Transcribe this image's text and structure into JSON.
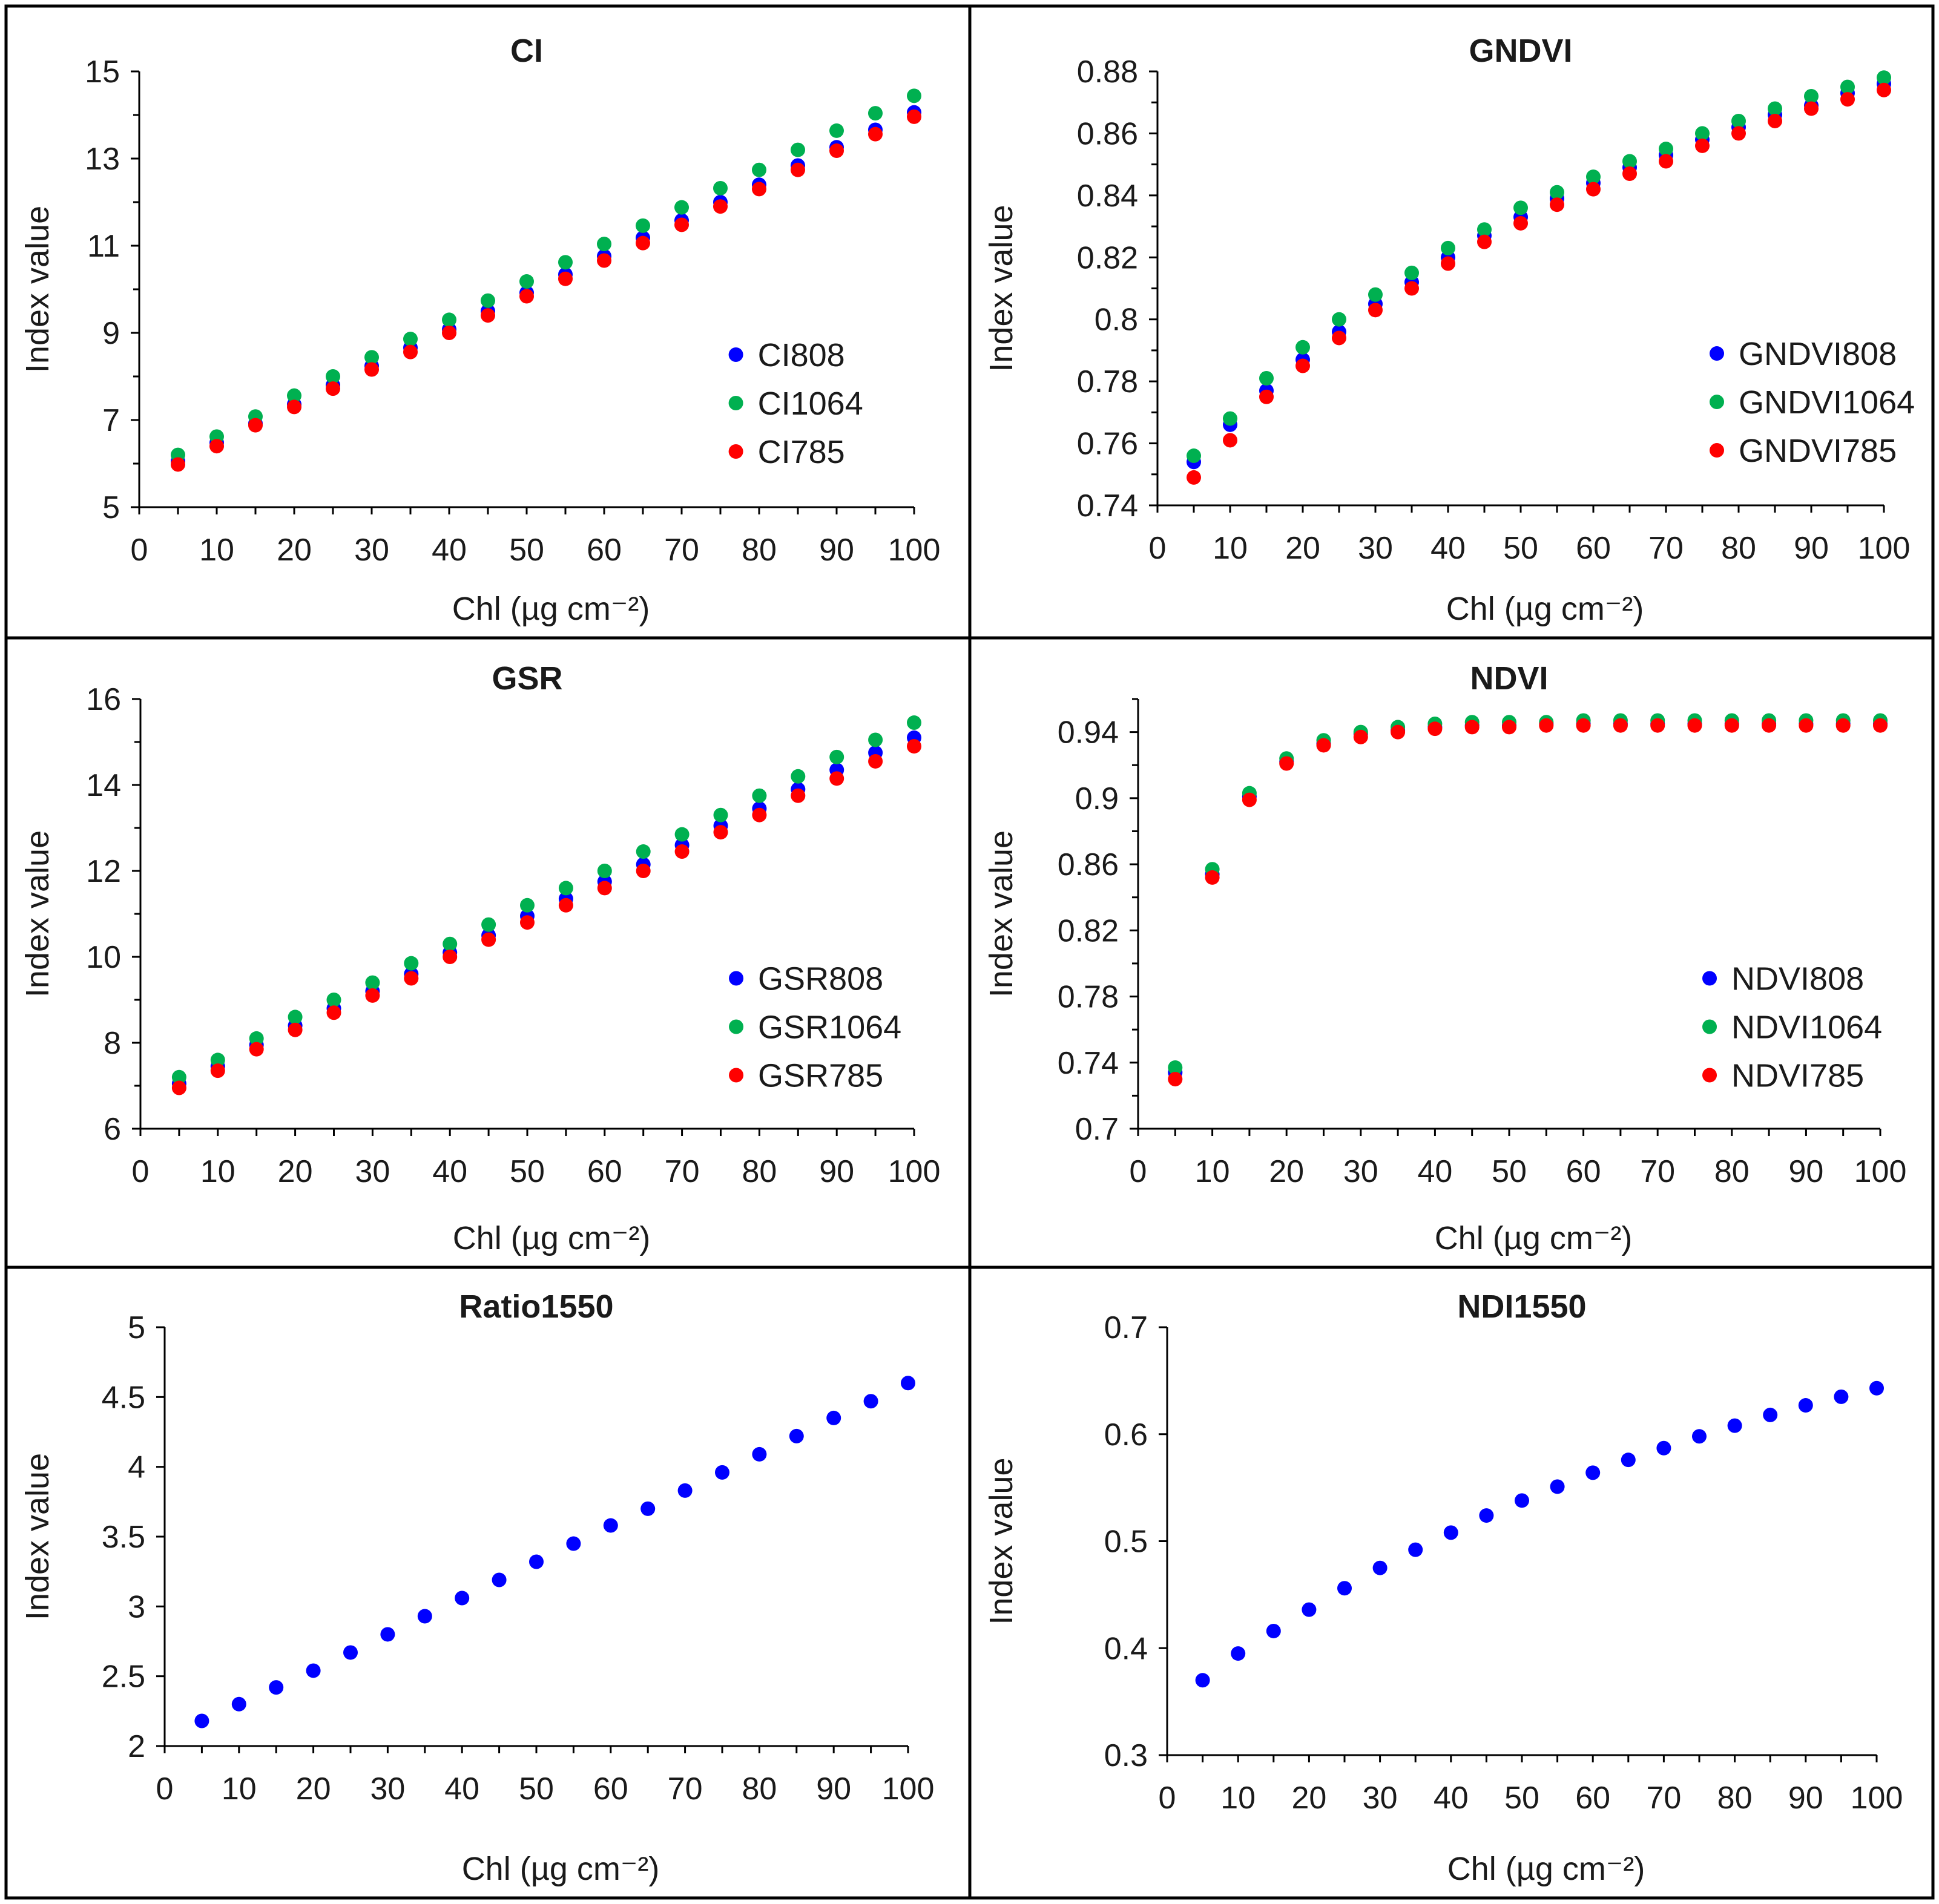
{
  "chart_data": [
    {
      "type": "scatter",
      "title": "CI",
      "xlabel": "Chl (µg cm⁻²)",
      "ylabel": "Index value",
      "xlim": [
        0,
        100
      ],
      "ylim": [
        5,
        15
      ],
      "x_ticks": [
        0,
        10,
        20,
        30,
        40,
        50,
        60,
        70,
        80,
        90,
        100
      ],
      "y_ticks": [
        5,
        7,
        9,
        11,
        13,
        15
      ],
      "y_minor": 1,
      "x": [
        5,
        10,
        15,
        20,
        25,
        30,
        35,
        40,
        45,
        50,
        55,
        60,
        65,
        70,
        75,
        80,
        85,
        90,
        95,
        100
      ],
      "legend_position": "bottom-right",
      "series": [
        {
          "name": "CI808",
          "color": "#0000ff",
          "values": [
            6.05,
            6.48,
            6.92,
            7.36,
            7.8,
            8.24,
            8.66,
            9.08,
            9.5,
            9.92,
            10.34,
            10.76,
            11.18,
            11.58,
            12.0,
            12.4,
            12.84,
            13.26,
            13.66,
            14.06
          ]
        },
        {
          "name": "CI1064",
          "color": "#00b050",
          "values": [
            6.2,
            6.62,
            7.08,
            7.56,
            8.0,
            8.44,
            8.86,
            9.3,
            9.74,
            10.18,
            10.62,
            11.04,
            11.46,
            11.88,
            12.32,
            12.74,
            13.2,
            13.64,
            14.04,
            14.44
          ]
        },
        {
          "name": "CI785",
          "color": "#ff0000",
          "values": [
            5.98,
            6.4,
            6.88,
            7.3,
            7.72,
            8.16,
            8.56,
            9.0,
            9.4,
            9.84,
            10.24,
            10.66,
            11.06,
            11.48,
            11.9,
            12.3,
            12.74,
            13.18,
            13.56,
            13.96
          ]
        }
      ]
    },
    {
      "type": "scatter",
      "title": "GNDVI",
      "xlabel": "Chl (µg cm⁻²)",
      "ylabel": "Index value",
      "xlim": [
        0,
        100
      ],
      "ylim": [
        0.74,
        0.88
      ],
      "x_ticks": [
        0,
        10,
        20,
        30,
        40,
        50,
        60,
        70,
        80,
        90,
        100
      ],
      "y_ticks": [
        0.74,
        0.76,
        0.78,
        0.8,
        0.82,
        0.84,
        0.86,
        0.88
      ],
      "y_tick_labels": [
        "0.74",
        "0.76",
        "0.78",
        "0.8",
        "0.82",
        "0.84",
        "0.86",
        "0.88"
      ],
      "y_minor": 0.01,
      "x": [
        5,
        10,
        15,
        20,
        25,
        30,
        35,
        40,
        45,
        50,
        55,
        60,
        65,
        70,
        75,
        80,
        85,
        90,
        95,
        100
      ],
      "legend_position": "bottom-right",
      "series": [
        {
          "name": "GNDVI808",
          "color": "#0000ff",
          "values": [
            0.754,
            0.766,
            0.777,
            0.787,
            0.796,
            0.805,
            0.812,
            0.82,
            0.827,
            0.833,
            0.839,
            0.844,
            0.849,
            0.853,
            0.858,
            0.862,
            0.866,
            0.869,
            0.873,
            0.876
          ]
        },
        {
          "name": "GNDVI1064",
          "color": "#00b050",
          "values": [
            0.756,
            0.768,
            0.781,
            0.791,
            0.8,
            0.808,
            0.815,
            0.823,
            0.829,
            0.836,
            0.841,
            0.846,
            0.851,
            0.855,
            0.86,
            0.864,
            0.868,
            0.872,
            0.875,
            0.878
          ]
        },
        {
          "name": "GNDVI785",
          "color": "#ff0000",
          "values": [
            0.749,
            0.761,
            0.775,
            0.785,
            0.794,
            0.803,
            0.81,
            0.818,
            0.825,
            0.831,
            0.837,
            0.842,
            0.847,
            0.851,
            0.856,
            0.86,
            0.864,
            0.868,
            0.871,
            0.874
          ]
        }
      ]
    },
    {
      "type": "scatter",
      "title": "GSR",
      "xlabel": "Chl (µg cm⁻²)",
      "ylabel": "Index value",
      "xlim": [
        0,
        100
      ],
      "ylim": [
        6,
        16
      ],
      "x_ticks": [
        0,
        10,
        20,
        30,
        40,
        50,
        60,
        70,
        80,
        90,
        100
      ],
      "y_ticks": [
        6,
        8,
        10,
        12,
        14,
        16
      ],
      "y_minor": 1,
      "x": [
        5,
        10,
        15,
        20,
        25,
        30,
        35,
        40,
        45,
        50,
        55,
        60,
        65,
        70,
        75,
        80,
        85,
        90,
        95,
        100
      ],
      "legend_position": "bottom-right",
      "series": [
        {
          "name": "GSR808",
          "color": "#0000ff",
          "values": [
            7.05,
            7.45,
            7.95,
            8.4,
            8.8,
            9.2,
            9.6,
            10.1,
            10.5,
            10.95,
            11.35,
            11.75,
            12.15,
            12.6,
            13.05,
            13.45,
            13.9,
            14.35,
            14.75,
            15.1
          ]
        },
        {
          "name": "GSR1064",
          "color": "#00b050",
          "values": [
            7.2,
            7.6,
            8.1,
            8.6,
            9.0,
            9.4,
            9.85,
            10.3,
            10.75,
            11.2,
            11.6,
            12.0,
            12.45,
            12.85,
            13.3,
            13.75,
            14.2,
            14.65,
            15.05,
            15.45
          ]
        },
        {
          "name": "GSR785",
          "color": "#ff0000",
          "values": [
            6.95,
            7.35,
            7.85,
            8.3,
            8.7,
            9.1,
            9.5,
            10.0,
            10.4,
            10.8,
            11.2,
            11.6,
            12.0,
            12.45,
            12.9,
            13.3,
            13.75,
            14.15,
            14.55,
            14.9
          ]
        }
      ]
    },
    {
      "type": "scatter",
      "title": "NDVI",
      "xlabel": "Chl (µg cm⁻²)",
      "ylabel": "Index value",
      "xlim": [
        0,
        100
      ],
      "ylim": [
        0.7,
        0.96
      ],
      "x_ticks": [
        0,
        10,
        20,
        30,
        40,
        50,
        60,
        70,
        80,
        90,
        100
      ],
      "y_ticks": [
        0.7,
        0.74,
        0.78,
        0.82,
        0.86,
        0.9,
        0.94
      ],
      "y_tick_labels": [
        "0.7",
        "0.74",
        "0.78",
        "0.82",
        "0.86",
        "0.9",
        "0.94"
      ],
      "y_minor": 0.02,
      "x": [
        5,
        10,
        15,
        20,
        25,
        30,
        35,
        40,
        45,
        50,
        55,
        60,
        65,
        70,
        75,
        80,
        85,
        90,
        95,
        100
      ],
      "legend_position": "bottom-right",
      "series": [
        {
          "name": "NDVI808",
          "color": "#0000ff",
          "values": [
            0.734,
            0.854,
            0.901,
            0.922,
            0.933,
            0.939,
            0.941,
            0.943,
            0.944,
            0.944,
            0.945,
            0.945,
            0.945,
            0.945,
            0.945,
            0.945,
            0.945,
            0.945,
            0.945,
            0.945
          ]
        },
        {
          "name": "NDVI1064",
          "color": "#00b050",
          "values": [
            0.737,
            0.857,
            0.903,
            0.924,
            0.935,
            0.94,
            0.943,
            0.945,
            0.946,
            0.946,
            0.946,
            0.947,
            0.947,
            0.947,
            0.947,
            0.947,
            0.947,
            0.947,
            0.947,
            0.947
          ]
        },
        {
          "name": "NDVI785",
          "color": "#ff0000",
          "values": [
            0.73,
            0.852,
            0.899,
            0.921,
            0.932,
            0.937,
            0.94,
            0.942,
            0.943,
            0.943,
            0.944,
            0.944,
            0.944,
            0.944,
            0.944,
            0.944,
            0.944,
            0.944,
            0.944,
            0.944
          ]
        }
      ]
    },
    {
      "type": "scatter",
      "title": "Ratio1550",
      "xlabel": "Chl (µg cm⁻²)",
      "ylabel": "Index value",
      "xlim": [
        0,
        100
      ],
      "ylim": [
        2,
        5
      ],
      "x_ticks": [
        0,
        10,
        20,
        30,
        40,
        50,
        60,
        70,
        80,
        90,
        100
      ],
      "y_ticks": [
        2,
        2.5,
        3,
        3.5,
        4,
        4.5,
        5
      ],
      "y_tick_labels": [
        "2",
        "2.5",
        "3",
        "3.5",
        "4",
        "4.5",
        "5"
      ],
      "y_minor": null,
      "x": [
        5,
        10,
        15,
        20,
        25,
        30,
        35,
        40,
        45,
        50,
        55,
        60,
        65,
        70,
        75,
        80,
        85,
        90,
        95,
        100
      ],
      "legend_position": "none",
      "series": [
        {
          "name": "Ratio1550",
          "color": "#0000ff",
          "values": [
            2.18,
            2.3,
            2.42,
            2.54,
            2.67,
            2.8,
            2.93,
            3.06,
            3.19,
            3.32,
            3.45,
            3.58,
            3.7,
            3.83,
            3.96,
            4.09,
            4.22,
            4.35,
            4.47,
            4.6
          ]
        }
      ]
    },
    {
      "type": "scatter",
      "title": "NDI1550",
      "xlabel": "Chl (µg cm⁻²)",
      "ylabel": "Index value",
      "xlim": [
        0,
        100
      ],
      "ylim": [
        0.3,
        0.7
      ],
      "x_ticks": [
        0,
        10,
        20,
        30,
        40,
        50,
        60,
        70,
        80,
        90,
        100
      ],
      "y_ticks": [
        0.3,
        0.4,
        0.5,
        0.6,
        0.7
      ],
      "y_tick_labels": [
        "0.3",
        "0.4",
        "0.5",
        "0.6",
        "0.7"
      ],
      "y_minor": null,
      "x": [
        5,
        10,
        15,
        20,
        25,
        30,
        35,
        40,
        45,
        50,
        55,
        60,
        65,
        70,
        75,
        80,
        85,
        90,
        95,
        100
      ],
      "legend_position": "none",
      "series": [
        {
          "name": "NDI1550",
          "color": "#0000ff",
          "values": [
            0.37,
            0.395,
            0.416,
            0.436,
            0.456,
            0.475,
            0.492,
            0.508,
            0.524,
            0.538,
            0.551,
            0.564,
            0.576,
            0.587,
            0.598,
            0.608,
            0.618,
            0.627,
            0.635,
            0.643
          ]
        }
      ]
    }
  ]
}
